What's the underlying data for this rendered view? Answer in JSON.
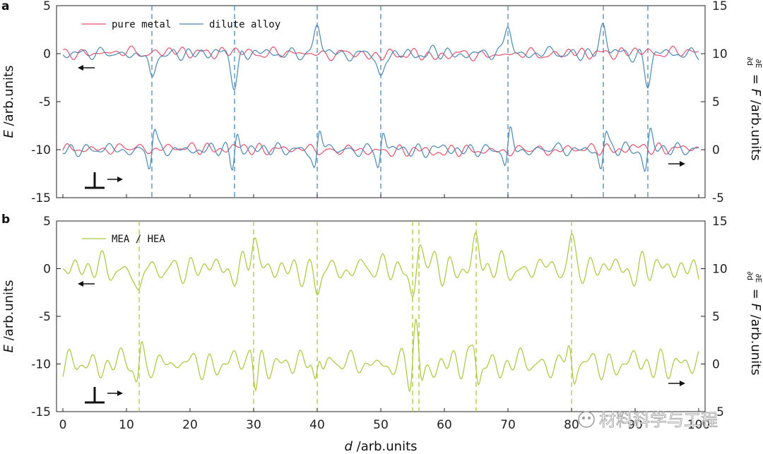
{
  "chart_data": [
    {
      "panel_label": "a",
      "type": "line",
      "xlim": [
        -1,
        101
      ],
      "ylim_left": [
        -15,
        5
      ],
      "ylim_right": [
        -5,
        15
      ],
      "y_ticks_left": [
        "5",
        "0",
        "-5",
        "-10",
        "-15"
      ],
      "y_ticks_right": [
        "15",
        "10",
        "5",
        "0",
        "-5"
      ],
      "ylabel_left": "E /arb.units",
      "ylabel_right": "∂E/∂d = F /arb.units",
      "dislocation_positions": [
        14,
        27,
        40,
        50,
        70,
        85,
        92
      ],
      "series": [
        {
          "name": "pure metal",
          "color": "#e8506a",
          "role": "energy",
          "offset_left": 0,
          "description_value": "flat near 0"
        },
        {
          "name": "dilute alloy",
          "color": "#4a88b8",
          "role": "energy",
          "offset_left": 0,
          "peak_values": [
            -3,
            -3,
            3,
            -3,
            3,
            3,
            -3
          ]
        },
        {
          "name": "pure metal",
          "color": "#e8506a",
          "role": "force",
          "offset_left": -10
        },
        {
          "name": "dilute alloy",
          "color": "#4a88b8",
          "role": "force",
          "offset_left": -10,
          "peak_amplitude": 4
        }
      ],
      "legend": [
        "pure metal",
        "dilute alloy"
      ],
      "legend_position": "top-left"
    },
    {
      "panel_label": "b",
      "type": "line",
      "xlim": [
        -1,
        101
      ],
      "ylim_left": [
        -15,
        5
      ],
      "ylim_right": [
        -5,
        15
      ],
      "y_ticks_left": [
        "5",
        "0",
        "-5",
        "-10",
        "-15"
      ],
      "y_ticks_right": [
        "15",
        "10",
        "5",
        "0",
        "-5"
      ],
      "x_ticks": [
        "0",
        "10",
        "20",
        "30",
        "40",
        "50",
        "60",
        "70",
        "80",
        "90",
        "100"
      ],
      "xlabel": "d /arb.units",
      "ylabel_left": "E /arb.units",
      "ylabel_right": "∂E/∂d = F /arb.units",
      "dislocation_positions": [
        12,
        30,
        40,
        55,
        56,
        65,
        80
      ],
      "series": [
        {
          "name": "MEA / HEA",
          "color": "#a8c83a",
          "role": "energy",
          "offset_left": 0,
          "peak_values": [
            -3,
            3,
            -3,
            -3,
            3,
            3,
            3
          ]
        },
        {
          "name": "MEA / HEA",
          "color": "#a8c83a",
          "role": "force",
          "offset_left": -10,
          "peak_amplitude": 4
        }
      ],
      "legend": [
        "MEA / HEA"
      ],
      "legend_position": "top-left"
    }
  ],
  "watermark": "材料科学与工程"
}
